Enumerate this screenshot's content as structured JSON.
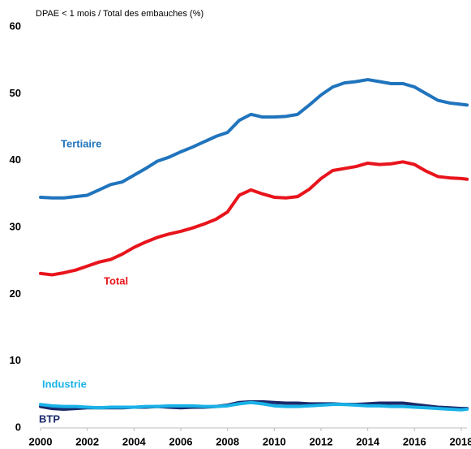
{
  "chart_data": {
    "type": "line",
    "ylabel": "DPAE < 1 mois / Total des embauches (%)",
    "x": [
      2000,
      2000.5,
      2001,
      2001.5,
      2002,
      2002.5,
      2003,
      2003.5,
      2004,
      2004.5,
      2005,
      2005.5,
      2006,
      2006.5,
      2007,
      2007.5,
      2008,
      2008.5,
      2009,
      2009.5,
      2010,
      2010.5,
      2011,
      2011.5,
      2012,
      2012.5,
      2013,
      2013.5,
      2014,
      2014.5,
      2015,
      2015.5,
      2016,
      2016.5,
      2017,
      2017.5,
      2018,
      2018.25
    ],
    "series": [
      {
        "name": "Tertiaire",
        "color": "#2074bd",
        "values": [
          34.5,
          34.4,
          34.4,
          34.6,
          34.8,
          35.6,
          36.4,
          36.8,
          37.8,
          38.8,
          39.9,
          40.5,
          41.3,
          42.0,
          42.8,
          43.6,
          44.2,
          46.0,
          46.9,
          46.5,
          46.5,
          46.6,
          46.9,
          48.3,
          49.8,
          51.0,
          51.6,
          51.8,
          52.1,
          51.8,
          51.5,
          51.5,
          51.0,
          50.0,
          49.0,
          48.6,
          48.4,
          48.3
        ]
      },
      {
        "name": "Total",
        "color": "#e8141c",
        "values": [
          23.1,
          22.9,
          23.2,
          23.6,
          24.2,
          24.8,
          25.2,
          26.0,
          27.0,
          27.8,
          28.5,
          29.0,
          29.4,
          29.9,
          30.5,
          31.2,
          32.3,
          34.8,
          35.6,
          35.0,
          34.5,
          34.4,
          34.6,
          35.7,
          37.3,
          38.5,
          38.8,
          39.1,
          39.6,
          39.4,
          39.5,
          39.8,
          39.4,
          38.4,
          37.6,
          37.4,
          37.3,
          37.2
        ]
      },
      {
        "name": "BTP",
        "color": "#1a2a6c",
        "values": [
          3.2,
          2.9,
          2.8,
          2.9,
          3.0,
          3.0,
          3.0,
          3.0,
          3.1,
          3.1,
          3.2,
          3.1,
          3.0,
          3.1,
          3.1,
          3.2,
          3.4,
          3.8,
          3.9,
          3.9,
          3.8,
          3.7,
          3.7,
          3.6,
          3.6,
          3.6,
          3.5,
          3.5,
          3.6,
          3.7,
          3.7,
          3.7,
          3.5,
          3.3,
          3.1,
          3.0,
          2.9,
          2.9
        ]
      },
      {
        "name": "Industrie",
        "color": "#19b2e8",
        "values": [
          3.5,
          3.3,
          3.2,
          3.2,
          3.1,
          3.0,
          3.1,
          3.1,
          3.1,
          3.2,
          3.2,
          3.3,
          3.3,
          3.3,
          3.2,
          3.2,
          3.3,
          3.6,
          3.8,
          3.6,
          3.3,
          3.2,
          3.2,
          3.3,
          3.4,
          3.5,
          3.5,
          3.4,
          3.3,
          3.3,
          3.2,
          3.2,
          3.1,
          3.0,
          2.9,
          2.8,
          2.7,
          2.8
        ]
      }
    ],
    "xlim": [
      2000,
      2018.25
    ],
    "xticks": [
      2000,
      2002,
      2004,
      2006,
      2008,
      2010,
      2012,
      2014,
      2016,
      2018
    ],
    "ylim": [
      0,
      60
    ],
    "yticks": [
      0,
      10,
      20,
      30,
      40,
      50,
      60
    ],
    "grid": false
  }
}
